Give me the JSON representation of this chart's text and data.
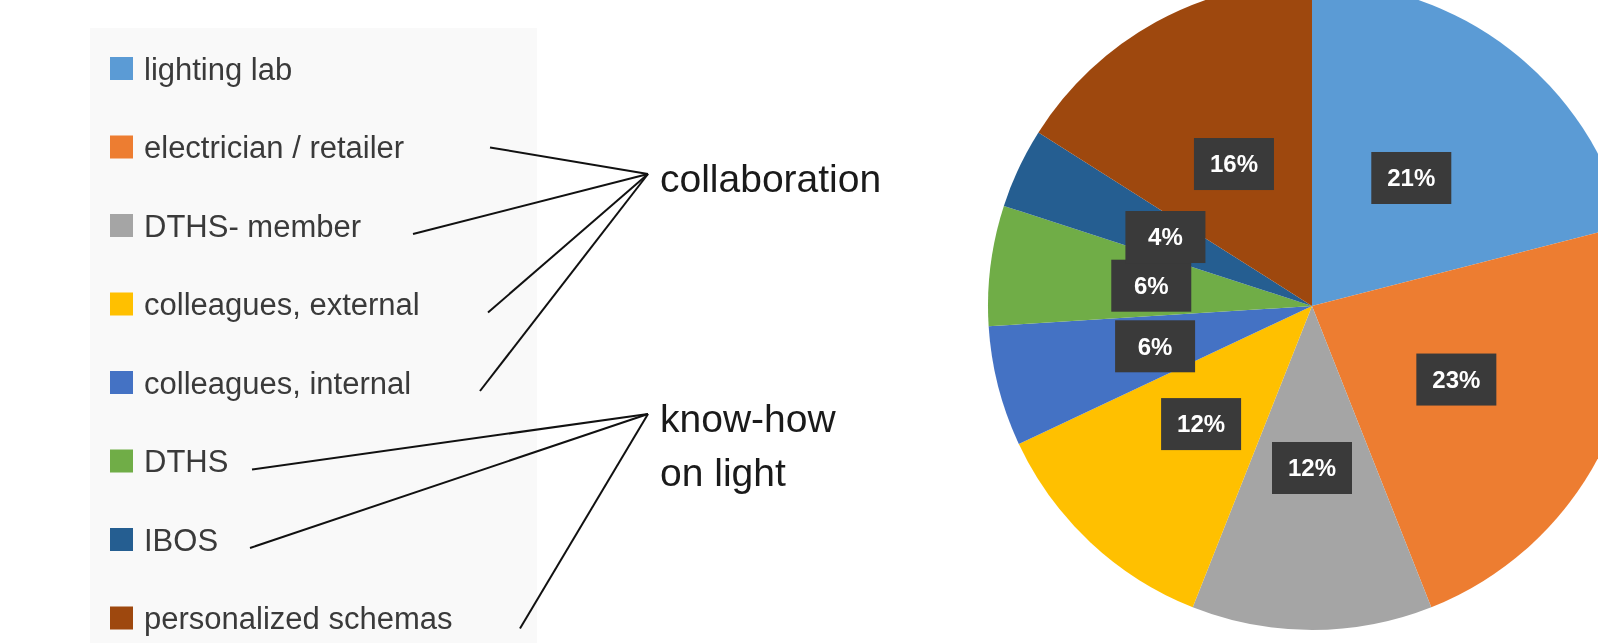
{
  "chart_data": {
    "type": "pie",
    "categories": [
      "lighting lab",
      "electrician / retailer",
      "DTHS- member",
      "colleagues, external",
      "colleagues, internal",
      "DTHS",
      "IBOS",
      "personalized schemas"
    ],
    "values": [
      21,
      23,
      12,
      12,
      6,
      6,
      4,
      16
    ],
    "colors": [
      "#5b9bd5",
      "#ed7d31",
      "#a5a5a5",
      "#ffc000",
      "#4472c4",
      "#70ad47",
      "#255e91",
      "#9e480e"
    ],
    "value_labels": [
      "21%",
      "23%",
      "12%",
      "12%",
      "6%",
      "6%",
      "4%",
      "16%"
    ],
    "legend": "left",
    "annotations": [
      "collaboration",
      "know-how\non light"
    ]
  }
}
